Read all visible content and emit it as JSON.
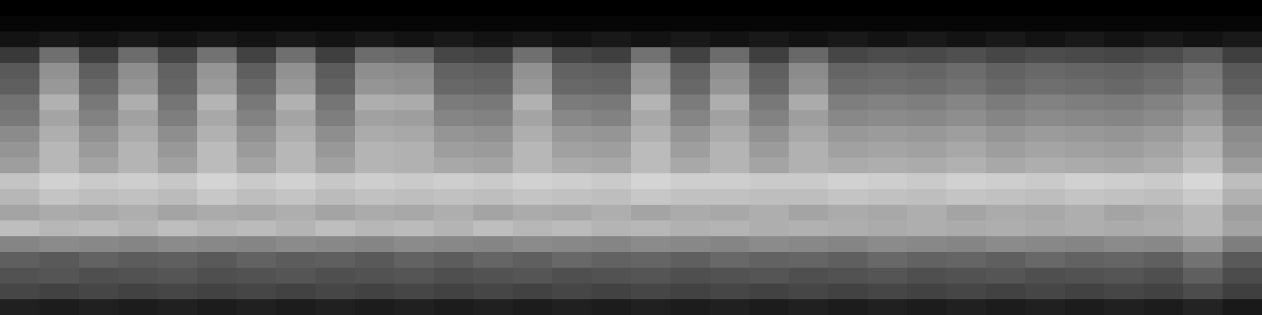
{
  "chart_data": {
    "type": "heatmap",
    "tick_labels": false,
    "grid": false,
    "cells": [
      [
        0,
        0,
        0,
        0,
        0,
        0,
        0,
        0,
        0,
        0,
        0,
        0,
        0,
        0,
        0,
        0,
        0,
        0,
        0,
        0,
        0,
        0,
        0,
        0,
        0,
        0,
        0,
        0,
        0,
        0,
        0,
        0
      ],
      [
        2,
        2,
        2,
        2,
        2,
        2,
        2,
        2,
        2,
        2,
        2,
        2,
        2,
        2,
        2,
        2,
        2,
        2,
        2,
        2,
        2,
        2,
        2,
        2,
        2,
        2,
        2,
        2,
        2,
        2,
        2,
        2
      ],
      [
        6,
        8,
        6,
        8,
        6,
        8,
        6,
        8,
        6,
        8,
        6,
        8,
        6,
        8,
        6,
        8,
        6,
        8,
        6,
        8,
        6,
        8,
        6,
        8,
        6,
        8,
        6,
        8,
        6,
        8,
        6,
        8
      ],
      [
        18,
        35,
        20,
        34,
        22,
        36,
        21,
        35,
        20,
        34,
        33,
        22,
        21,
        35,
        22,
        20,
        36,
        21,
        34,
        20,
        33,
        22,
        24,
        23,
        25,
        22,
        24,
        23,
        22,
        24,
        28,
        20
      ],
      [
        28,
        46,
        30,
        45,
        31,
        47,
        30,
        46,
        29,
        45,
        44,
        31,
        30,
        46,
        31,
        30,
        47,
        31,
        45,
        30,
        44,
        32,
        33,
        32,
        34,
        31,
        33,
        32,
        31,
        33,
        38,
        28
      ],
      [
        30,
        48,
        33,
        47,
        32,
        49,
        33,
        48,
        31,
        47,
        46,
        33,
        32,
        48,
        33,
        32,
        49,
        33,
        47,
        32,
        46,
        34,
        35,
        34,
        36,
        33,
        35,
        34,
        33,
        35,
        40,
        30
      ],
      [
        36,
        56,
        38,
        55,
        37,
        57,
        38,
        56,
        37,
        55,
        54,
        39,
        38,
        56,
        39,
        38,
        57,
        39,
        55,
        38,
        54,
        40,
        41,
        40,
        42,
        39,
        41,
        40,
        39,
        41,
        46,
        36
      ],
      [
        38,
        52,
        41,
        51,
        40,
        53,
        41,
        52,
        40,
        51,
        50,
        42,
        41,
        52,
        43,
        41,
        53,
        42,
        51,
        41,
        50,
        43,
        44,
        43,
        45,
        42,
        44,
        43,
        42,
        44,
        49,
        38
      ],
      [
        44,
        55,
        46,
        54,
        45,
        56,
        46,
        55,
        45,
        54,
        53,
        47,
        46,
        55,
        48,
        47,
        56,
        47,
        54,
        46,
        53,
        48,
        49,
        48,
        50,
        47,
        49,
        48,
        47,
        49,
        54,
        44
      ],
      [
        47,
        58,
        49,
        57,
        48,
        59,
        49,
        58,
        48,
        57,
        56,
        50,
        49,
        58,
        51,
        50,
        59,
        50,
        57,
        49,
        56,
        51,
        52,
        51,
        53,
        50,
        52,
        51,
        50,
        52,
        57,
        46
      ],
      [
        50,
        58,
        52,
        57,
        51,
        59,
        52,
        58,
        51,
        57,
        56,
        53,
        52,
        58,
        54,
        53,
        59,
        53,
        57,
        52,
        56,
        54,
        55,
        54,
        56,
        53,
        55,
        54,
        53,
        55,
        60,
        50
      ],
      [
        62,
        66,
        64,
        65,
        63,
        67,
        64,
        66,
        63,
        65,
        64,
        65,
        64,
        66,
        65,
        64,
        67,
        65,
        65,
        64,
        64,
        66,
        65,
        64,
        66,
        65,
        64,
        66,
        65,
        64,
        68,
        60
      ],
      [
        58,
        62,
        60,
        61,
        59,
        63,
        60,
        62,
        59,
        61,
        60,
        61,
        60,
        62,
        61,
        60,
        63,
        61,
        61,
        60,
        60,
        62,
        61,
        60,
        62,
        61,
        60,
        62,
        61,
        60,
        64,
        56
      ],
      [
        52,
        54,
        53,
        55,
        52,
        54,
        53,
        55,
        52,
        54,
        53,
        55,
        52,
        54,
        53,
        55,
        52,
        54,
        53,
        55,
        52,
        54,
        53,
        55,
        52,
        54,
        53,
        55,
        52,
        54,
        58,
        50
      ],
      [
        60,
        58,
        59,
        57,
        60,
        58,
        59,
        57,
        60,
        58,
        59,
        57,
        60,
        58,
        59,
        57,
        58,
        56,
        57,
        55,
        56,
        55,
        54,
        55,
        54,
        55,
        54,
        55,
        54,
        55,
        58,
        52
      ],
      [
        42,
        44,
        43,
        42,
        44,
        43,
        42,
        44,
        43,
        42,
        44,
        43,
        42,
        44,
        43,
        42,
        44,
        43,
        42,
        44,
        43,
        42,
        44,
        43,
        42,
        44,
        43,
        42,
        44,
        43,
        48,
        40
      ],
      [
        30,
        28,
        31,
        29,
        30,
        28,
        31,
        29,
        30,
        28,
        31,
        29,
        32,
        30,
        33,
        31,
        32,
        30,
        33,
        31,
        32,
        30,
        33,
        31,
        32,
        30,
        33,
        31,
        32,
        30,
        36,
        28
      ],
      [
        26,
        27,
        25,
        26,
        27,
        25,
        26,
        27,
        25,
        26,
        27,
        25,
        26,
        27,
        25,
        26,
        27,
        25,
        26,
        27,
        25,
        26,
        27,
        25,
        26,
        27,
        25,
        26,
        27,
        25,
        30,
        24
      ],
      [
        22,
        21,
        22,
        21,
        22,
        21,
        22,
        21,
        22,
        21,
        22,
        21,
        22,
        21,
        22,
        21,
        22,
        21,
        22,
        21,
        22,
        21,
        22,
        21,
        22,
        21,
        22,
        21,
        22,
        21,
        24,
        20
      ],
      [
        10,
        9,
        10,
        9,
        10,
        9,
        10,
        9,
        10,
        9,
        10,
        9,
        10,
        9,
        10,
        9,
        10,
        9,
        10,
        9,
        10,
        9,
        10,
        9,
        10,
        9,
        10,
        9,
        10,
        9,
        11,
        8
      ]
    ]
  }
}
